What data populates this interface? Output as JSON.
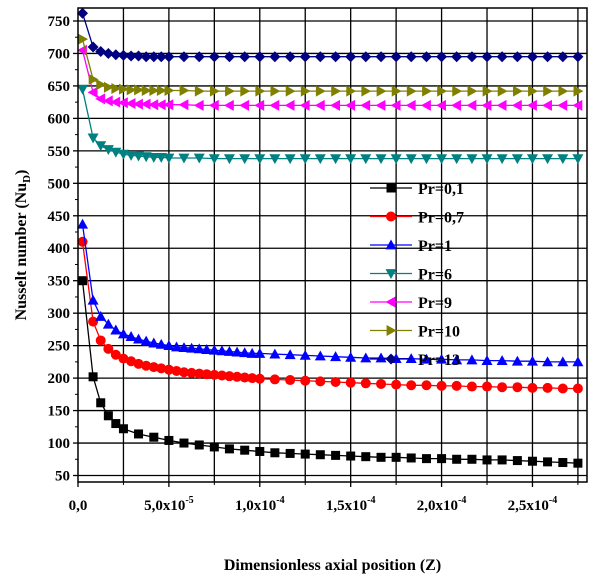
{
  "chart_data": {
    "type": "line",
    "xlabel": "Dimensionless axial position (Z)",
    "ylabel_main": "Nusselt number (Nu",
    "ylabel_sub": "D",
    "ylabel_end": ")",
    "xlim": [
      0,
      0.00028
    ],
    "ylim": [
      40,
      770
    ],
    "grid": true,
    "legend_position": "center-right",
    "x_ticks": [
      {
        "value": 0,
        "mantissa": "0,0",
        "exponent": ""
      },
      {
        "value": 5e-05,
        "mantissa": "5,0x10",
        "exponent": "-5"
      },
      {
        "value": 0.0001,
        "mantissa": "1,0x10",
        "exponent": "-4"
      },
      {
        "value": 0.00015,
        "mantissa": "1,5x10",
        "exponent": "-4"
      },
      {
        "value": 0.0002,
        "mantissa": "2,0x10",
        "exponent": "-4"
      },
      {
        "value": 0.00025,
        "mantissa": "2,5x10",
        "exponent": "-4"
      }
    ],
    "y_ticks": [
      50,
      100,
      150,
      200,
      250,
      300,
      350,
      400,
      450,
      500,
      550,
      600,
      650,
      700,
      750
    ],
    "series": [
      {
        "name": "Pr=0,1",
        "color": "#000000",
        "marker": "square",
        "x": [
          2.5e-06,
          8.3e-06,
          1.25e-05,
          1.67e-05,
          2.08e-05,
          2.5e-05,
          3.33e-05,
          4.17e-05,
          5e-05,
          5.83e-05,
          6.67e-05,
          7.5e-05,
          8.33e-05,
          9.17e-05,
          0.0001,
          0.0001083,
          0.0001167,
          0.000125,
          0.0001333,
          0.0001417,
          0.00015,
          0.0001583,
          0.0001667,
          0.000175,
          0.0001833,
          0.0001917,
          0.0002,
          0.0002083,
          0.0002167,
          0.000225,
          0.0002333,
          0.0002417,
          0.00025,
          0.0002583,
          0.0002667,
          0.000275
        ],
        "y": [
          350,
          202,
          162,
          142,
          130,
          122,
          114,
          109,
          104,
          100,
          97,
          94,
          91,
          89,
          87,
          85,
          84,
          83,
          82,
          81,
          80,
          79,
          78,
          78,
          77,
          76,
          76,
          75,
          75,
          74,
          74,
          73,
          72,
          71,
          70,
          69
        ]
      },
      {
        "name": "Pr=0,7",
        "color": "#ff0000",
        "marker": "circle",
        "x": [
          2.5e-06,
          8.3e-06,
          1.25e-05,
          1.67e-05,
          2.08e-05,
          2.5e-05,
          2.92e-05,
          3.33e-05,
          3.75e-05,
          4.17e-05,
          4.58e-05,
          5e-05,
          5.42e-05,
          5.83e-05,
          6.25e-05,
          6.67e-05,
          7.08e-05,
          7.5e-05,
          7.92e-05,
          8.33e-05,
          8.75e-05,
          9.17e-05,
          9.58e-05,
          0.0001,
          0.0001083,
          0.0001167,
          0.000125,
          0.0001333,
          0.0001417,
          0.00015,
          0.0001583,
          0.0001667,
          0.000175,
          0.0001833,
          0.0001917,
          0.0002,
          0.0002083,
          0.0002167,
          0.000225,
          0.0002333,
          0.0002417,
          0.00025,
          0.0002583,
          0.0002667,
          0.000275
        ],
        "y": [
          410,
          287,
          258,
          245,
          236,
          230,
          226,
          222,
          219,
          217,
          215,
          213,
          211,
          209,
          208,
          207,
          206,
          205,
          204,
          203,
          202,
          201,
          200,
          199,
          198,
          197,
          196,
          195,
          194,
          193,
          192,
          191,
          190,
          189,
          189,
          188,
          188,
          187,
          187,
          186,
          186,
          185,
          185,
          184,
          184
        ]
      },
      {
        "name": "Pr=1",
        "color": "#0000ff",
        "marker": "triangle-up",
        "x": [
          2.5e-06,
          8.3e-06,
          1.25e-05,
          1.67e-05,
          2.08e-05,
          2.5e-05,
          2.92e-05,
          3.33e-05,
          3.75e-05,
          4.17e-05,
          4.58e-05,
          5e-05,
          5.42e-05,
          5.83e-05,
          6.25e-05,
          6.67e-05,
          7.08e-05,
          7.5e-05,
          7.92e-05,
          8.33e-05,
          8.75e-05,
          9.17e-05,
          9.58e-05,
          0.0001,
          0.0001083,
          0.0001167,
          0.000125,
          0.0001333,
          0.0001417,
          0.00015,
          0.0001583,
          0.0001667,
          0.000175,
          0.0001833,
          0.0001917,
          0.0002,
          0.0002083,
          0.0002167,
          0.000225,
          0.0002333,
          0.0002417,
          0.00025,
          0.0002583,
          0.0002667,
          0.000275
        ],
        "y": [
          437,
          320,
          295,
          283,
          274,
          268,
          264,
          260,
          257,
          254,
          252,
          250,
          248,
          247,
          246,
          245,
          244,
          243,
          242,
          241,
          240,
          239,
          238,
          238,
          237,
          236,
          235,
          234,
          233,
          232,
          231,
          231,
          230,
          230,
          229,
          229,
          228,
          228,
          227,
          227,
          226,
          226,
          225,
          225,
          225
        ]
      },
      {
        "name": "Pr=6",
        "color": "#008080",
        "marker": "triangle-down",
        "x": [
          2.5e-06,
          8.3e-06,
          1.25e-05,
          1.67e-05,
          2.08e-05,
          2.5e-05,
          2.92e-05,
          3.33e-05,
          3.75e-05,
          4.17e-05,
          4.58e-05,
          5e-05,
          5.83e-05,
          6.67e-05,
          7.5e-05,
          8.33e-05,
          9.17e-05,
          0.0001,
          0.0001083,
          0.0001167,
          0.000125,
          0.0001333,
          0.0001417,
          0.00015,
          0.0001583,
          0.0001667,
          0.000175,
          0.0001833,
          0.0001917,
          0.0002,
          0.0002083,
          0.0002167,
          0.000225,
          0.0002333,
          0.0002417,
          0.00025,
          0.0002583,
          0.0002667,
          0.000275
        ],
        "y": [
          645,
          570,
          558,
          552,
          548,
          545,
          543,
          542,
          541,
          540,
          540,
          539,
          539,
          539,
          538,
          538,
          538,
          538,
          538,
          538,
          538,
          538,
          538,
          538,
          538,
          538,
          538,
          538,
          538,
          538,
          538,
          538,
          538,
          538,
          538,
          538,
          538,
          538,
          538
        ]
      },
      {
        "name": "Pr=9",
        "color": "#ff00ff",
        "marker": "triangle-left",
        "x": [
          2.5e-06,
          8.3e-06,
          1.25e-05,
          1.67e-05,
          2.08e-05,
          2.5e-05,
          2.92e-05,
          3.33e-05,
          3.75e-05,
          4.17e-05,
          4.58e-05,
          5e-05,
          5.83e-05,
          6.67e-05,
          7.5e-05,
          8.33e-05,
          9.17e-05,
          0.0001,
          0.0001083,
          0.0001167,
          0.000125,
          0.0001333,
          0.0001417,
          0.00015,
          0.0001583,
          0.0001667,
          0.000175,
          0.0001833,
          0.0001917,
          0.0002,
          0.0002083,
          0.0002167,
          0.000225,
          0.0002333,
          0.0002417,
          0.00025,
          0.0002583,
          0.0002667,
          0.000275
        ],
        "y": [
          705,
          640,
          630,
          627,
          625,
          624,
          623,
          622,
          622,
          621,
          621,
          621,
          621,
          620,
          620,
          620,
          620,
          620,
          620,
          620,
          620,
          620,
          620,
          620,
          620,
          620,
          620,
          620,
          620,
          620,
          620,
          620,
          620,
          620,
          620,
          620,
          620,
          620,
          620
        ]
      },
      {
        "name": "Pr=10",
        "color": "#808000",
        "marker": "triangle-right",
        "x": [
          2.5e-06,
          8.3e-06,
          1.25e-05,
          1.67e-05,
          2.08e-05,
          2.5e-05,
          2.92e-05,
          3.33e-05,
          3.75e-05,
          4.17e-05,
          4.58e-05,
          5e-05,
          5.83e-05,
          6.67e-05,
          7.5e-05,
          8.33e-05,
          9.17e-05,
          0.0001,
          0.0001083,
          0.0001167,
          0.000125,
          0.0001333,
          0.0001417,
          0.00015,
          0.0001583,
          0.0001667,
          0.000175,
          0.0001833,
          0.0001917,
          0.0002,
          0.0002083,
          0.0002167,
          0.000225,
          0.0002333,
          0.0002417,
          0.00025,
          0.0002583,
          0.0002667,
          0.000275
        ],
        "y": [
          722,
          660,
          652,
          648,
          646,
          645,
          644,
          644,
          643,
          643,
          643,
          643,
          643,
          642,
          642,
          642,
          642,
          642,
          642,
          642,
          642,
          642,
          642,
          642,
          642,
          642,
          642,
          642,
          642,
          642,
          642,
          642,
          642,
          642,
          642,
          642,
          642,
          642,
          642
        ]
      },
      {
        "name": "Pr=13",
        "color": "#000080",
        "marker": "diamond",
        "x": [
          2.5e-06,
          8.3e-06,
          1.25e-05,
          1.67e-05,
          2.08e-05,
          2.5e-05,
          2.92e-05,
          3.33e-05,
          3.75e-05,
          4.17e-05,
          4.58e-05,
          5e-05,
          5.83e-05,
          6.67e-05,
          7.5e-05,
          8.33e-05,
          9.17e-05,
          0.0001,
          0.0001083,
          0.0001167,
          0.000125,
          0.0001333,
          0.0001417,
          0.00015,
          0.0001583,
          0.0001667,
          0.000175,
          0.0001833,
          0.0001917,
          0.0002,
          0.0002083,
          0.0002167,
          0.000225,
          0.0002333,
          0.0002417,
          0.00025,
          0.0002583,
          0.0002667,
          0.000275
        ],
        "y": [
          762,
          710,
          703,
          700,
          698,
          697,
          696,
          696,
          695,
          695,
          695,
          695,
          695,
          695,
          695,
          695,
          695,
          695,
          695,
          695,
          695,
          695,
          695,
          695,
          695,
          695,
          695,
          695,
          695,
          695,
          695,
          695,
          695,
          695,
          695,
          695,
          695,
          695,
          695
        ]
      }
    ]
  }
}
